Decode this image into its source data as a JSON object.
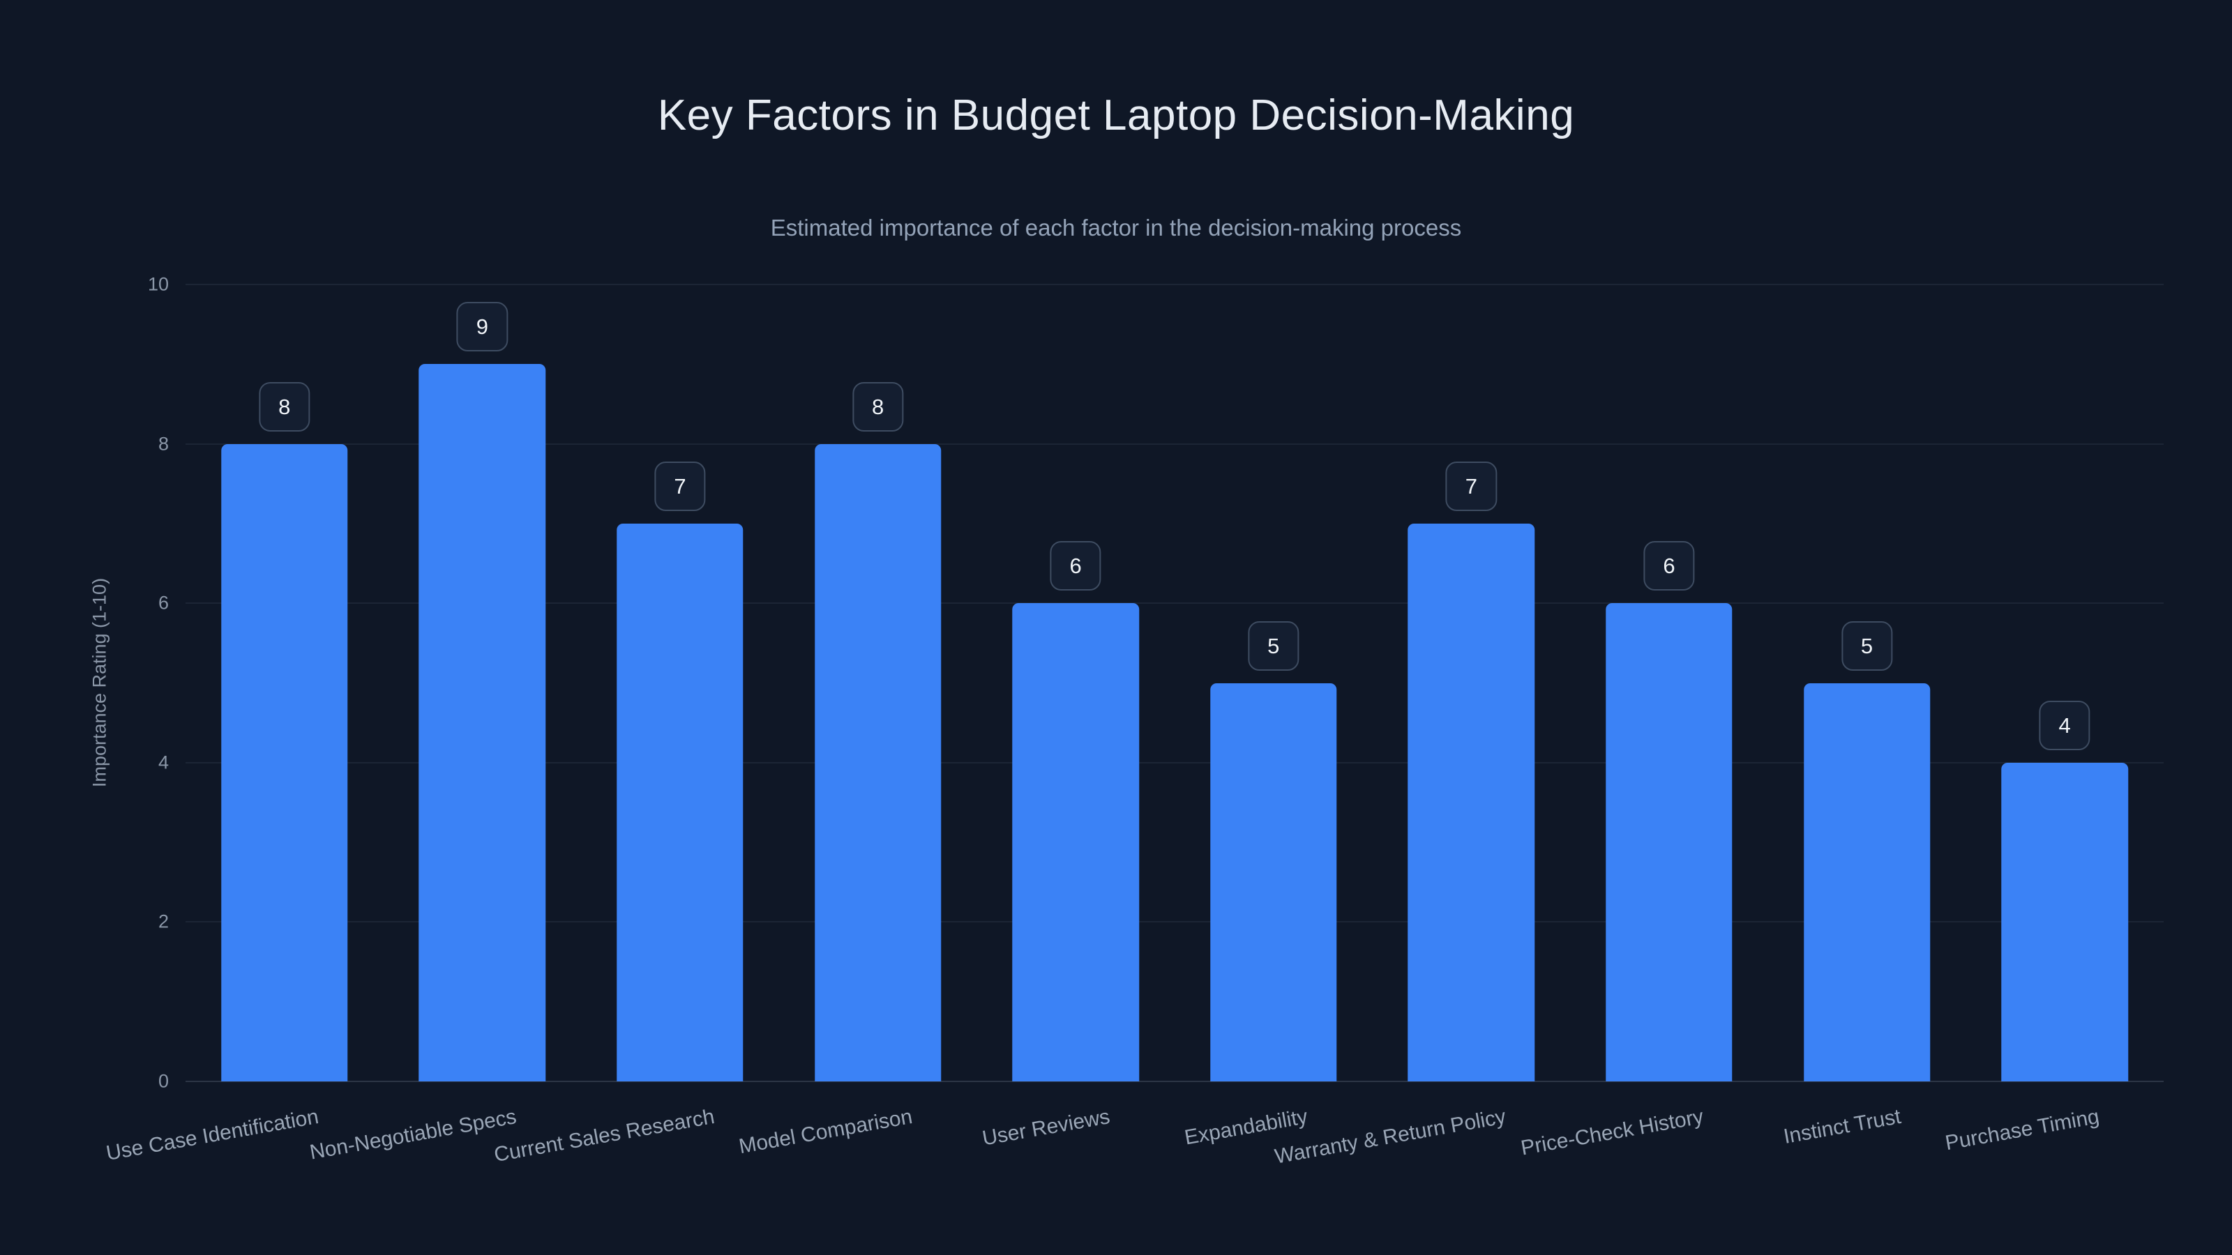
{
  "page": {
    "background_color": "#0f1726",
    "text_color_primary": "#e7ecf3",
    "text_color_secondary": "#94a3b8"
  },
  "chart_data": {
    "type": "bar",
    "title": "Key Factors in Budget Laptop Decision-Making",
    "subtitle": "Estimated importance of each factor in the decision-making process",
    "xlabel": "",
    "ylabel": "Importance Rating (1-10)",
    "categories": [
      "Use Case Identification",
      "Non-Negotiable Specs",
      "Current Sales Research",
      "Model Comparison",
      "User Reviews",
      "Expandability",
      "Warranty & Return Policy",
      "Price-Check History",
      "Instinct Trust",
      "Purchase Timing"
    ],
    "values": [
      8,
      9,
      7,
      8,
      6,
      5,
      7,
      6,
      5,
      4
    ],
    "ylim": [
      0,
      10
    ],
    "yticks": [
      0,
      2,
      4,
      6,
      8,
      10
    ],
    "grid": true,
    "legend_position": "none",
    "bar_color": "#3b82f6",
    "value_label_style": "rounded-badge",
    "value_label_border_color": "#3e4c61",
    "value_label_background": "#141e30"
  }
}
